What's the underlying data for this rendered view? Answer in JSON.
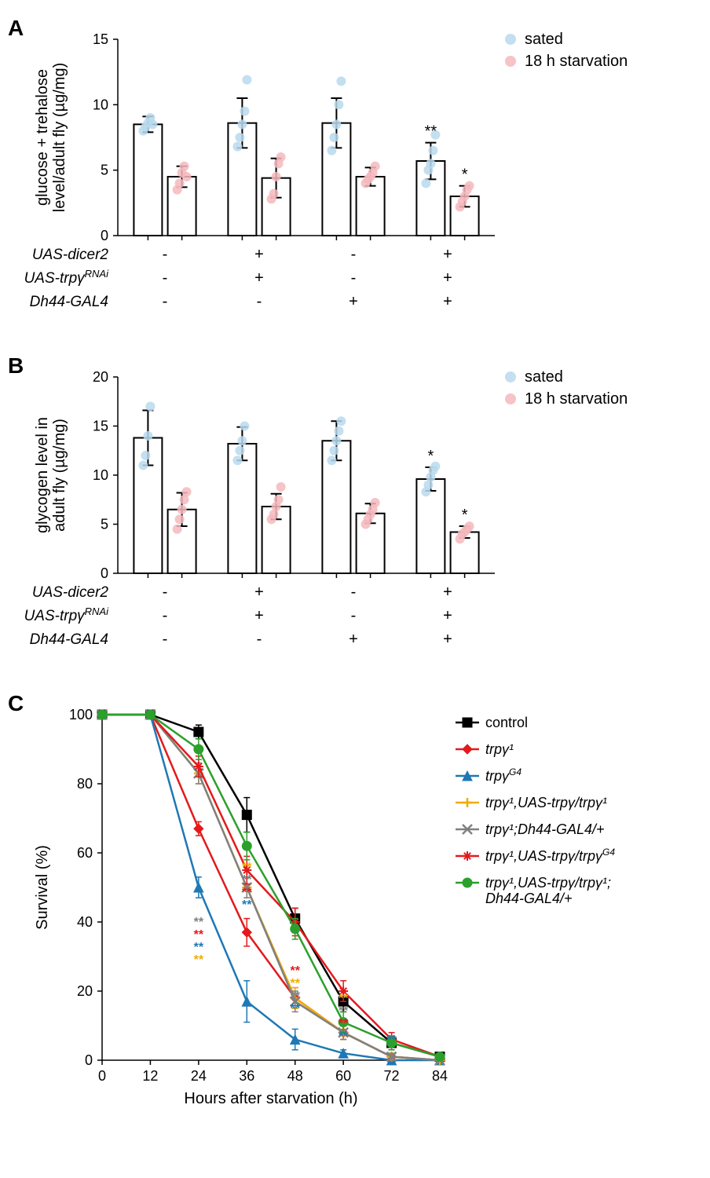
{
  "panelA": {
    "label": "A",
    "type": "bar-scatter",
    "ylabel_line1": "glucose + trehalose",
    "ylabel_line2": "level/adult fly (µg/mg)",
    "ylim": [
      0,
      15
    ],
    "ytick_step": 5,
    "legend": {
      "sated": "sated",
      "starvation": "18 h starvation"
    },
    "colors": {
      "sated": "#b8d9ed",
      "starvation": "#f4b8bd"
    },
    "groups": [
      {
        "sated_mean": 8.5,
        "sated_err": 0.6,
        "sated_points": [
          8.0,
          8.3,
          8.6,
          9.0,
          8.5
        ],
        "starv_mean": 4.5,
        "starv_err": 0.8,
        "starv_points": [
          3.5,
          4.0,
          4.8,
          5.3,
          4.5
        ],
        "sig_sated": "",
        "sig_starv": ""
      },
      {
        "sated_mean": 8.6,
        "sated_err": 1.9,
        "sated_points": [
          6.8,
          7.5,
          8.5,
          9.5,
          11.9
        ],
        "starv_mean": 4.4,
        "starv_err": 1.5,
        "starv_points": [
          2.8,
          3.2,
          4.5,
          5.5,
          6.0
        ],
        "sig_sated": "",
        "sig_starv": ""
      },
      {
        "sated_mean": 8.6,
        "sated_err": 1.9,
        "sated_points": [
          6.5,
          7.5,
          8.5,
          10.0,
          11.8
        ],
        "starv_mean": 4.5,
        "starv_err": 0.7,
        "starv_points": [
          4.0,
          4.3,
          4.5,
          4.8,
          5.3
        ],
        "sig_sated": "",
        "sig_starv": ""
      },
      {
        "sated_mean": 5.7,
        "sated_err": 1.4,
        "sated_points": [
          4.0,
          5.0,
          5.5,
          6.5,
          7.7
        ],
        "starv_mean": 3.0,
        "starv_err": 0.8,
        "starv_points": [
          2.2,
          2.6,
          3.0,
          3.5,
          3.8
        ],
        "sig_sated": "**",
        "sig_starv": "*"
      }
    ],
    "genotype_rows": [
      {
        "label": "UAS-dicer2",
        "marks": [
          "-",
          "+",
          "-",
          "+"
        ]
      },
      {
        "label": "UAS-trpγ",
        "sup": "RNAi",
        "marks": [
          "-",
          "+",
          "-",
          "+"
        ]
      },
      {
        "label": "Dh44-GAL4",
        "marks": [
          "-",
          "-",
          "+",
          "+"
        ]
      }
    ]
  },
  "panelB": {
    "label": "B",
    "type": "bar-scatter",
    "ylabel_line1": "glycogen level in",
    "ylabel_line2": "adult fly (µg/mg)",
    "ylim": [
      0,
      20
    ],
    "ytick_step": 5,
    "legend": {
      "sated": "sated",
      "starvation": "18 h starvation"
    },
    "colors": {
      "sated": "#b8d9ed",
      "starvation": "#f4b8bd"
    },
    "groups": [
      {
        "sated_mean": 13.8,
        "sated_err": 2.8,
        "sated_points": [
          11.0,
          12.0,
          14.0,
          17.0
        ],
        "starv_mean": 6.5,
        "starv_err": 1.7,
        "starv_points": [
          4.5,
          5.5,
          6.5,
          7.5,
          8.3
        ],
        "sig_sated": "",
        "sig_starv": ""
      },
      {
        "sated_mean": 13.2,
        "sated_err": 1.7,
        "sated_points": [
          11.5,
          12.5,
          13.5,
          15.0
        ],
        "starv_mean": 6.8,
        "starv_err": 1.3,
        "starv_points": [
          5.5,
          6.0,
          6.8,
          7.5,
          8.8
        ],
        "sig_sated": "",
        "sig_starv": ""
      },
      {
        "sated_mean": 13.5,
        "sated_err": 2.0,
        "sated_points": [
          11.5,
          12.5,
          13.5,
          14.5,
          15.5
        ],
        "starv_mean": 6.1,
        "starv_err": 1.0,
        "starv_points": [
          5.0,
          5.5,
          6.0,
          6.5,
          7.2
        ],
        "sig_sated": "",
        "sig_starv": ""
      },
      {
        "sated_mean": 9.6,
        "sated_err": 1.2,
        "sated_points": [
          8.3,
          9.0,
          9.8,
          10.5,
          10.9
        ],
        "starv_mean": 4.2,
        "starv_err": 0.6,
        "starv_points": [
          3.5,
          4.0,
          4.2,
          4.5,
          4.8
        ],
        "sig_sated": "*",
        "sig_starv": "*"
      }
    ],
    "genotype_rows": [
      {
        "label": "UAS-dicer2",
        "marks": [
          "-",
          "+",
          "-",
          "+"
        ]
      },
      {
        "label": "UAS-trpγ",
        "sup": "RNAi",
        "marks": [
          "-",
          "+",
          "-",
          "+"
        ]
      },
      {
        "label": "Dh44-GAL4",
        "marks": [
          "-",
          "-",
          "+",
          "+"
        ]
      }
    ]
  },
  "panelC": {
    "label": "C",
    "type": "line",
    "xlabel": "Hours after starvation (h)",
    "ylabel": "Survival (%)",
    "xlim": [
      0,
      84
    ],
    "ylim": [
      0,
      100
    ],
    "xtick_step": 12,
    "ytick_step": 20,
    "x": [
      0,
      12,
      24,
      36,
      48,
      60,
      72,
      84
    ],
    "series": [
      {
        "name": "control",
        "label": "control",
        "color": "#000000",
        "marker": "square-filled",
        "y": [
          100,
          100,
          95,
          71,
          41,
          17,
          5,
          1
        ],
        "err": [
          0,
          0,
          2,
          5,
          3,
          3,
          2,
          1
        ]
      },
      {
        "name": "trpg1",
        "label": "trpγ¹",
        "color": "#e31a1c",
        "marker": "diamond",
        "y": [
          100,
          100,
          67,
          37,
          18,
          8,
          1,
          0
        ],
        "err": [
          0,
          0,
          2,
          4,
          3,
          2,
          1,
          0
        ]
      },
      {
        "name": "trpgG4",
        "label": "trpγ^G4",
        "color": "#1f78b4",
        "marker": "triangle",
        "y": [
          100,
          100,
          50,
          17,
          6,
          2,
          0,
          0
        ],
        "err": [
          0,
          0,
          3,
          6,
          3,
          1,
          0,
          0
        ]
      },
      {
        "name": "trpg1-UAS-trpg1",
        "label": "trpγ¹,UAS-trpγ/trpγ¹",
        "color": "#f0ad00",
        "marker": "plus",
        "y": [
          100,
          100,
          83,
          50,
          18,
          8,
          1,
          0
        ],
        "err": [
          0,
          0,
          3,
          3,
          3,
          2,
          1,
          0
        ]
      },
      {
        "name": "trpg1-Dh44",
        "label": "trpγ¹;Dh44-GAL4/+",
        "color": "#808080",
        "marker": "x",
        "y": [
          100,
          100,
          83,
          50,
          17,
          8,
          1,
          0
        ],
        "err": [
          0,
          0,
          3,
          3,
          3,
          2,
          1,
          0
        ]
      },
      {
        "name": "trpg1-UAS-trpgG4",
        "label": "trpγ¹,UAS-trpγ/trpγ^G4",
        "color": "#e31a1c",
        "marker": "asterisk",
        "y": [
          100,
          100,
          85,
          55,
          40,
          20,
          6,
          1
        ],
        "err": [
          0,
          0,
          3,
          4,
          4,
          3,
          2,
          1
        ]
      },
      {
        "name": "trpg1-UAS-trpg1-Dh44",
        "label": "trpγ¹,UAS-trpγ/trpγ¹; Dh44-GAL4/+",
        "color": "#2ca02c",
        "marker": "circle",
        "y": [
          100,
          100,
          90,
          62,
          38,
          11,
          5,
          1
        ],
        "err": [
          0,
          0,
          3,
          4,
          3,
          3,
          2,
          1
        ]
      }
    ],
    "significance": [
      {
        "x": 24,
        "marks": [
          {
            "color": "#808080",
            "text": "**"
          },
          {
            "color": "#e31a1c",
            "text": "**"
          },
          {
            "color": "#1f78b4",
            "text": "**"
          },
          {
            "color": "#f0ad00",
            "text": "**"
          }
        ],
        "y_anchor": 42
      },
      {
        "x": 36,
        "marks": [
          {
            "color": "#f0ad00",
            "text": "**"
          },
          {
            "color": "#808080",
            "text": "**"
          },
          {
            "color": "#e31a1c",
            "text": "**"
          },
          {
            "color": "#1f78b4",
            "text": "**"
          }
        ],
        "y_anchor": 58
      },
      {
        "x": 48,
        "marks": [
          {
            "color": "#e31a1c",
            "text": "**"
          },
          {
            "color": "#f0ad00",
            "text": "**"
          },
          {
            "color": "#808080",
            "text": "**"
          },
          {
            "color": "#1f78b4",
            "text": "**"
          }
        ],
        "y_anchor": 28
      },
      {
        "x": 60,
        "marks": [
          {
            "color": "#f0ad00",
            "text": "**"
          },
          {
            "color": "#808080",
            "text": "**"
          },
          {
            "color": "#e31a1c",
            "text": "**"
          },
          {
            "color": "#1f78b4",
            "text": "**"
          }
        ],
        "y_anchor": 20
      },
      {
        "x": 72,
        "marks": [
          {
            "color": "#1f78b4",
            "text": "**"
          }
        ],
        "y_anchor": 8
      }
    ]
  }
}
